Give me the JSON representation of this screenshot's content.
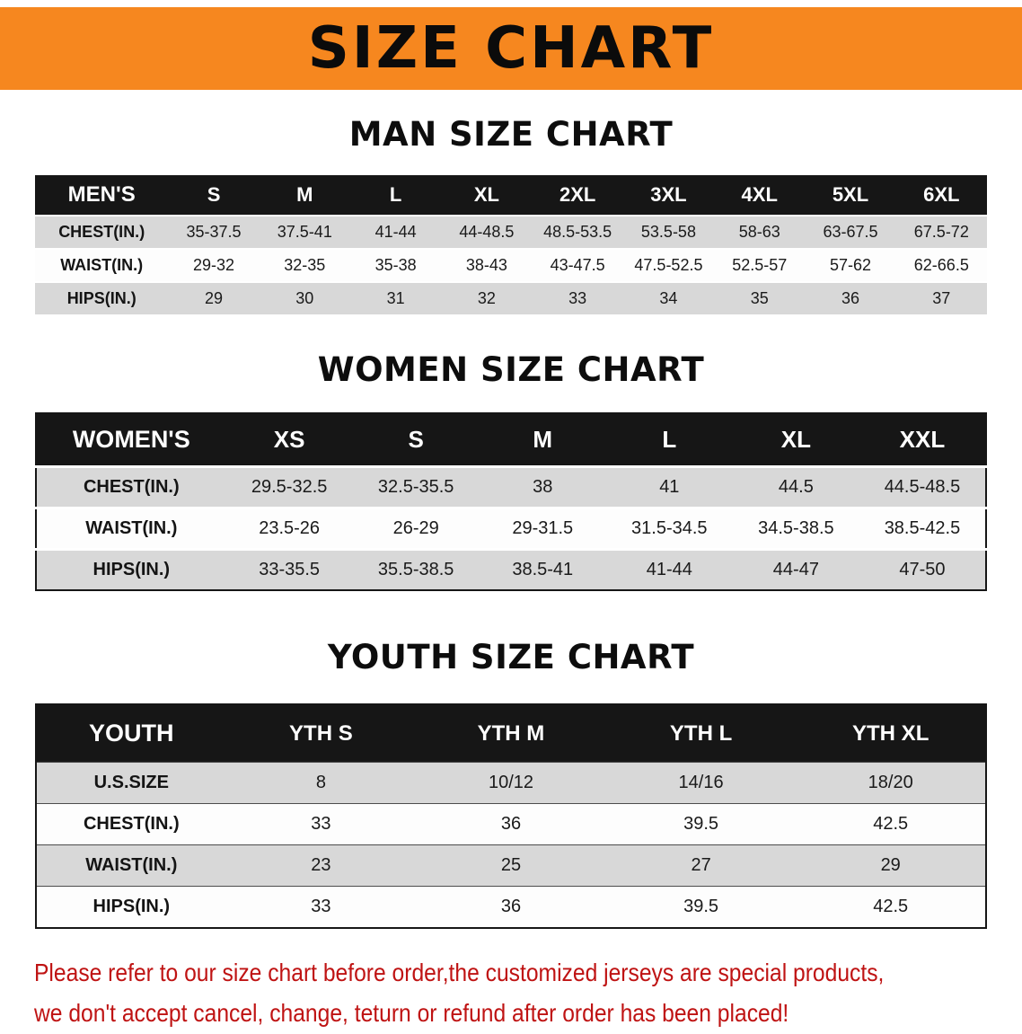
{
  "banner": {
    "title": "SIZE CHART"
  },
  "colors": {
    "banner_bg": "#f6871f",
    "table_header_bg": "#161616",
    "row_stripe": "#d8d8d8",
    "disclaimer_text": "#bf1313"
  },
  "men": {
    "heading": "MAN SIZE CHART",
    "header": [
      "MEN'S",
      "S",
      "M",
      "L",
      "XL",
      "2XL",
      "3XL",
      "4XL",
      "5XL",
      "6XL"
    ],
    "rows": [
      [
        "CHEST(IN.)",
        "35-37.5",
        "37.5-41",
        "41-44",
        "44-48.5",
        "48.5-53.5",
        "53.5-58",
        "58-63",
        "63-67.5",
        "67.5-72"
      ],
      [
        "WAIST(IN.)",
        "29-32",
        "32-35",
        "35-38",
        "38-43",
        "43-47.5",
        "47.5-52.5",
        "52.5-57",
        "57-62",
        "62-66.5"
      ],
      [
        "HIPS(IN.)",
        "29",
        "30",
        "31",
        "32",
        "33",
        "34",
        "35",
        "36",
        "37"
      ]
    ]
  },
  "women": {
    "heading": "WOMEN SIZE CHART",
    "header": [
      "WOMEN'S",
      "XS",
      "S",
      "M",
      "L",
      "XL",
      "XXL"
    ],
    "rows": [
      [
        "CHEST(IN.)",
        "29.5-32.5",
        "32.5-35.5",
        "38",
        "41",
        "44.5",
        "44.5-48.5"
      ],
      [
        "WAIST(IN.)",
        "23.5-26",
        "26-29",
        "29-31.5",
        "31.5-34.5",
        "34.5-38.5",
        "38.5-42.5"
      ],
      [
        "HIPS(IN.)",
        "33-35.5",
        "35.5-38.5",
        "38.5-41",
        "41-44",
        "44-47",
        "47-50"
      ]
    ]
  },
  "youth": {
    "heading": "YOUTH SIZE CHART",
    "header": [
      "YOUTH",
      "YTH S",
      "YTH M",
      "YTH L",
      "YTH XL"
    ],
    "rows": [
      [
        "U.S.SIZE",
        "8",
        "10/12",
        "14/16",
        "18/20"
      ],
      [
        "CHEST(IN.)",
        "33",
        "36",
        "39.5",
        "42.5"
      ],
      [
        "WAIST(IN.)",
        "23",
        "25",
        "27",
        "29"
      ],
      [
        "HIPS(IN.)",
        "33",
        "36",
        "39.5",
        "42.5"
      ]
    ]
  },
  "disclaimer": {
    "line1": "Please refer to our size chart before order,the customized jerseys are special products,",
    "line2": "we don't accept cancel, change, teturn or refund after order has been placed!"
  }
}
